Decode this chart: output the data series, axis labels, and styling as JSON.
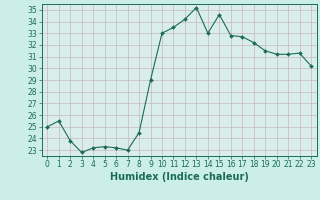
{
  "x": [
    0,
    1,
    2,
    3,
    4,
    5,
    6,
    7,
    8,
    9,
    10,
    11,
    12,
    13,
    14,
    15,
    16,
    17,
    18,
    19,
    20,
    21,
    22,
    23
  ],
  "y": [
    25.0,
    25.5,
    23.8,
    22.8,
    23.2,
    23.3,
    23.2,
    23.0,
    24.5,
    29.0,
    33.0,
    33.5,
    34.2,
    35.2,
    33.0,
    34.6,
    32.8,
    32.7,
    32.2,
    31.5,
    31.2,
    31.2,
    31.3,
    30.2
  ],
  "xlabel": "Humidex (Indice chaleur)",
  "line_color": "#1a6b5a",
  "marker": "D",
  "marker_size": 2.0,
  "bg_color": "#cceee8",
  "plot_bg_color": "#d6f0ec",
  "grid_color": "#c0c8c4",
  "ylim": [
    22.5,
    35.5
  ],
  "xlim": [
    -0.5,
    23.5
  ],
  "yticks": [
    23,
    24,
    25,
    26,
    27,
    28,
    29,
    30,
    31,
    32,
    33,
    34,
    35
  ],
  "xticks": [
    0,
    1,
    2,
    3,
    4,
    5,
    6,
    7,
    8,
    9,
    10,
    11,
    12,
    13,
    14,
    15,
    16,
    17,
    18,
    19,
    20,
    21,
    22,
    23
  ],
  "tick_fontsize": 5.5,
  "label_fontsize": 7
}
